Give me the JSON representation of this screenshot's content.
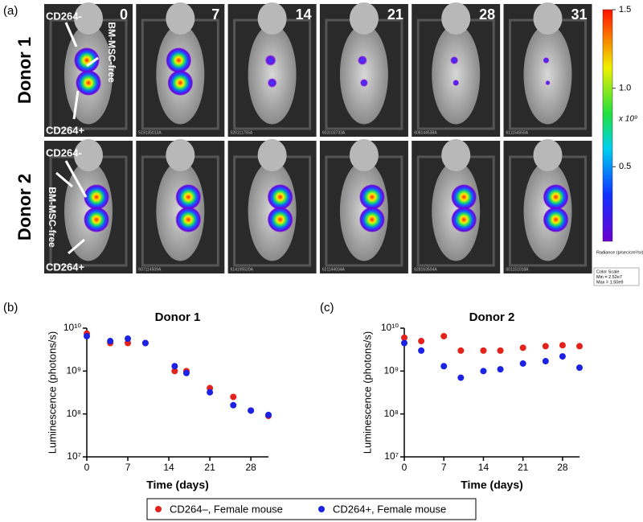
{
  "panel_a": {
    "label": "(a)",
    "rows": [
      "Donor 1",
      "Donor 2"
    ],
    "days": [
      "0",
      "7",
      "14",
      "21",
      "28",
      "31"
    ],
    "annotations": [
      {
        "top": "CD264-",
        "side": "BM-MSC-free",
        "bottom": "CD264+"
      },
      {
        "top": "CD264-",
        "side": "BM-MSC-free",
        "bottom": "CD264+"
      }
    ],
    "image_ids": [
      [
        "519135013A",
        "526111755A",
        "603103733A",
        "608144538A",
        "611154555A"
      ],
      [
        "607114509A",
        "614195520A",
        "621144034A",
        "628163504A",
        "001151018A"
      ]
    ],
    "colorbar": {
      "lim": [
        0.0252,
        1.5
      ],
      "ticks": [
        0.5,
        {
          "value": 1,
          "label": "1.0"
        },
        1.5
      ],
      "unit": "x 10⁹",
      "title": "Radiance (p/sec/cm²/sr)",
      "scale_note": [
        "Color Scale",
        "Min = 2.52e7",
        "Max = 1.50e9"
      ]
    }
  },
  "chart_data": [
    {
      "type": "scatter",
      "panel": "(b)",
      "title": "Donor 1",
      "x_label": "Time (days)",
      "y_label": "Luminescence (photons/s)",
      "x": [
        0,
        4,
        7,
        10,
        15,
        17,
        21,
        25,
        28,
        31
      ],
      "series": [
        {
          "color": "#e3221c",
          "values": [
            7500000000,
            4500000000,
            4500000000,
            4500000000,
            1000000000,
            1000000000,
            400000000,
            250000000,
            120000000,
            90000000
          ]
        },
        {
          "color": "#1c22e3",
          "values": [
            6500000000,
            5000000000,
            5700000000,
            4500000000,
            1300000000,
            900000000,
            320000000,
            160000000,
            120000000,
            95000000
          ]
        }
      ],
      "xlim": [
        0,
        31
      ],
      "xticks": [
        0,
        7,
        14,
        21,
        28
      ],
      "ylim": [
        10000000,
        10000000000
      ],
      "yticks": [
        {
          "value": 10000000,
          "label": "10⁷"
        },
        {
          "value": 100000000,
          "label": "10⁸"
        },
        {
          "value": 1000000000,
          "label": "10⁹"
        },
        {
          "value": 10000000000,
          "label": "10¹⁰"
        }
      ],
      "log_y": true
    },
    {
      "type": "scatter",
      "panel": "(c)",
      "title": "Donor 2",
      "x_label": "Time (days)",
      "y_label": "Luminescence (photons/s)",
      "x": [
        0,
        3,
        7,
        10,
        14,
        17,
        21,
        25,
        28,
        31
      ],
      "series": [
        {
          "color": "#e3221c",
          "values": [
            6000000000,
            5000000000,
            6500000000,
            3000000000,
            3000000000,
            3000000000,
            3500000000,
            3800000000,
            4000000000,
            3800000000
          ]
        },
        {
          "color": "#1c22e3",
          "values": [
            4500000000,
            3000000000,
            1300000000,
            700000000,
            1000000000,
            1100000000,
            1500000000,
            1700000000,
            2200000000,
            1200000000
          ]
        }
      ],
      "xlim": [
        0,
        31
      ],
      "xticks": [
        0,
        7,
        14,
        21,
        28
      ],
      "ylim": [
        10000000,
        10000000000
      ],
      "yticks": [
        {
          "value": 10000000,
          "label": "10⁷"
        },
        {
          "value": 100000000,
          "label": "10⁸"
        },
        {
          "value": 1000000000,
          "label": "10⁹"
        },
        {
          "value": 10000000000,
          "label": "10¹⁰"
        }
      ],
      "log_y": true
    }
  ],
  "legend": [
    {
      "name": "CD264–, Female mouse",
      "color": "#e3221c"
    },
    {
      "name": "CD264+, Female mouse",
      "color": "#1c22e3"
    }
  ]
}
